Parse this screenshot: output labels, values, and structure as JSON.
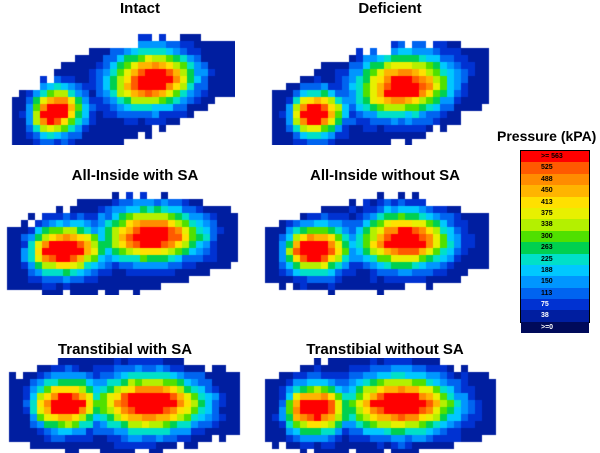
{
  "panels": [
    {
      "id": "intact",
      "title": "Intact"
    },
    {
      "id": "deficient",
      "title": "Deficient"
    },
    {
      "id": "allinside-with",
      "title": "All-Inside with SA"
    },
    {
      "id": "allinside-without",
      "title": "All-Inside without SA"
    },
    {
      "id": "transtibial-with",
      "title": "Transtibial with SA"
    },
    {
      "id": "transtibial-without",
      "title": "Transtibial without SA"
    }
  ],
  "legend": {
    "title": "Pressure (kPA)",
    "levels": [
      {
        "label": ">= 563",
        "color": "#ff0000"
      },
      {
        "label": "525",
        "color": "#ff5a00"
      },
      {
        "label": "488",
        "color": "#ff8c00"
      },
      {
        "label": "450",
        "color": "#ffb400"
      },
      {
        "label": "413",
        "color": "#ffe000"
      },
      {
        "label": "375",
        "color": "#e8f000"
      },
      {
        "label": "338",
        "color": "#b4f000"
      },
      {
        "label": "300",
        "color": "#50e000"
      },
      {
        "label": "263",
        "color": "#00d050"
      },
      {
        "label": "225",
        "color": "#00e0c8"
      },
      {
        "label": "188",
        "color": "#00c8ff"
      },
      {
        "label": "150",
        "color": "#0096ff"
      },
      {
        "label": "113",
        "color": "#0064f0"
      },
      {
        "label": "75",
        "color": "#0032d2"
      },
      {
        "label": "38",
        "color": "#001ea0"
      },
      {
        "label": ">=0",
        "color": "#000a5a"
      }
    ]
  }
}
